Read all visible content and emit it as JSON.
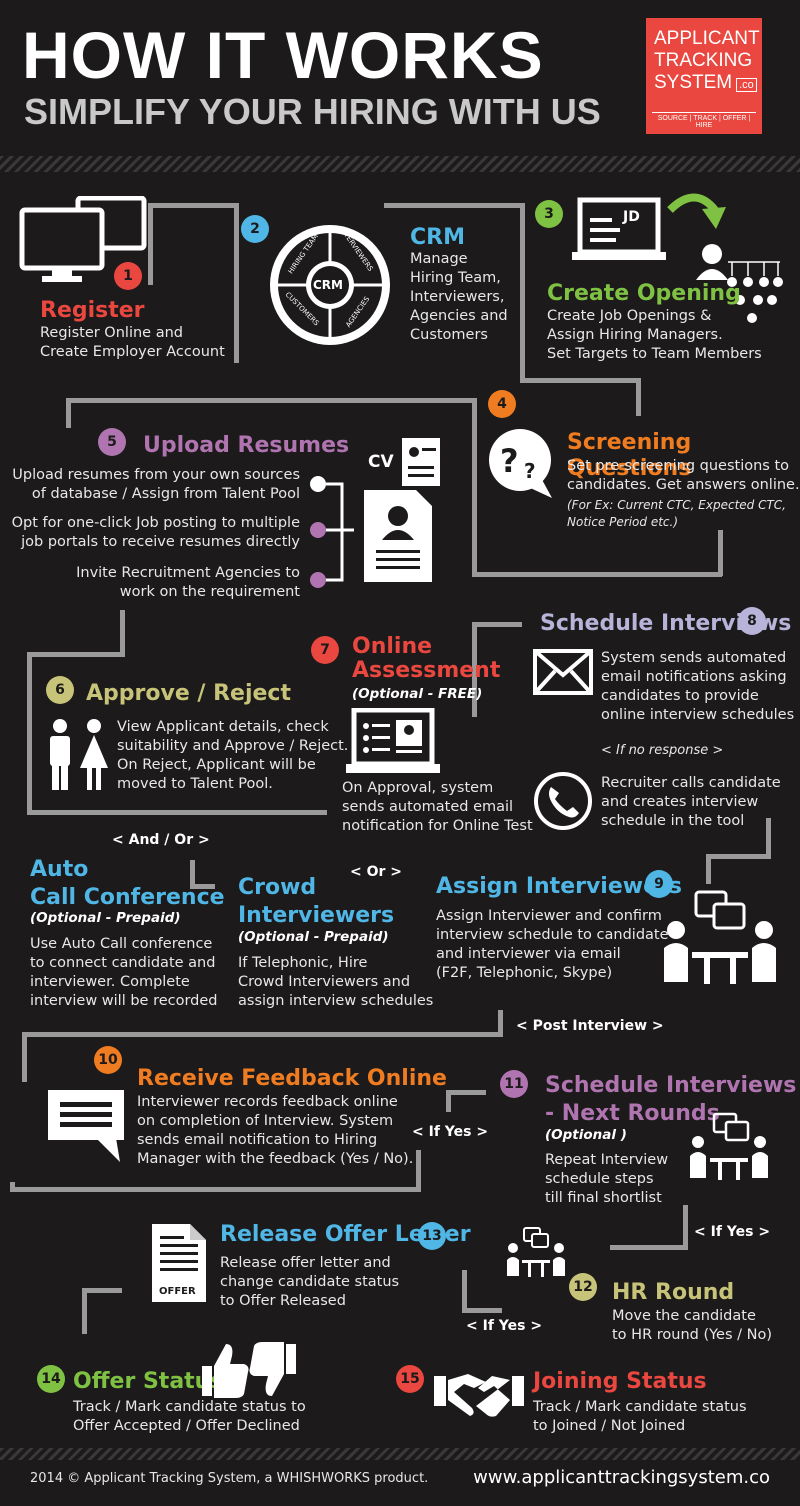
{
  "header": {
    "title": "HOW IT WORKS",
    "subtitle": "SIMPLIFY YOUR HIRING WITH US",
    "logo": {
      "line1": "APPLICANT",
      "line2": "TRACKING",
      "line3": "SYSTEM",
      "suffix": ".co",
      "tagline": "SOURCE | TRACK | OFFER | HIRE",
      "color": "#e9473f"
    }
  },
  "steps": {
    "s1": {
      "num": "1",
      "title": "Register",
      "text": [
        "Register Online and",
        "Create Employer Account"
      ]
    },
    "s2": {
      "num": "2",
      "title": "CRM",
      "text": [
        "Manage",
        "Hiring Team,",
        "Interviewers,",
        "Agencies and",
        "Customers"
      ],
      "wheel": {
        "center": "CRM",
        "q1": "HIRING TEAM",
        "q2": "INTERVIEWERS",
        "q3": "CUSTOMERS",
        "q4": "AGENCIES"
      }
    },
    "s3": {
      "num": "3",
      "title": "Create Opening",
      "icon_label": "JD",
      "text": [
        "Create Job Openings &",
        "Assign Hiring Managers.",
        "Set Targets to Team Members"
      ]
    },
    "s4": {
      "num": "4",
      "title": "Screening Questions",
      "text": [
        "Set pre-screening questions to",
        "candidates. Get answers online."
      ],
      "note": [
        "(For Ex: Current CTC, Expected CTC,",
        "Notice Period etc.)"
      ]
    },
    "s5": {
      "num": "5",
      "title": "Upload Resumes",
      "icon_label": "CV",
      "items": [
        [
          "Upload resumes from your own sources",
          "of database / Assign from Talent Pool"
        ],
        [
          "Opt for one-click Job posting to multiple",
          "job portals to receive resumes directly"
        ],
        [
          "Invite Recruitment Agencies to",
          "work on the requirement"
        ]
      ]
    },
    "s6": {
      "num": "6",
      "title": "Approve / Reject",
      "text": [
        "View Applicant details, check",
        "suitability and Approve / Reject.",
        "On Reject, Applicant will be",
        "moved to Talent Pool."
      ]
    },
    "s7": {
      "num": "7",
      "title": [
        "Online",
        "Assessment"
      ],
      "sub": "(Optional - FREE)",
      "text": [
        "On Approval, system",
        "sends automated email",
        "notification for Online Test"
      ]
    },
    "s8": {
      "num": "8",
      "title": "Schedule Interviews",
      "text": [
        "System sends automated",
        "email notifications asking",
        "candidates to provide",
        "online interview schedules"
      ],
      "branch": "< If no response >",
      "text2": [
        "Recruiter calls candidate",
        "and creates interview",
        "schedule in the tool"
      ]
    },
    "auto": {
      "title": [
        "Auto",
        "Call Conference"
      ],
      "sub": "(Optional - Prepaid)",
      "text": [
        "Use Auto Call conference",
        "to connect candidate and",
        "interviewer. Complete",
        "interview will be recorded"
      ]
    },
    "crowd": {
      "title": [
        "Crowd",
        "Interviewers"
      ],
      "sub": "(Optional - Prepaid)",
      "text": [
        "If Telephonic, Hire",
        "Crowd Interviewers and",
        "assign interview schedules"
      ]
    },
    "s9": {
      "num": "9",
      "title": "Assign Interviewers",
      "text": [
        "Assign Interviewer and confirm",
        "interview schedule to candidate",
        "and interviewer via email",
        "(F2F, Telephonic, Skype)"
      ]
    },
    "s10": {
      "num": "10",
      "title": "Receive Feedback Online",
      "text": [
        "Interviewer records feedback online",
        "on completion of Interview. System",
        "sends email notification to Hiring",
        "Manager with the feedback (Yes / No)."
      ]
    },
    "s11": {
      "num": "11",
      "title": [
        "Schedule Interviews",
        "- Next Rounds"
      ],
      "sub": "(Optional )",
      "text": [
        "Repeat Interview",
        "schedule steps",
        "till final shortlist"
      ]
    },
    "s12": {
      "num": "12",
      "title": "HR Round",
      "text": [
        "Move the candidate",
        "to HR round (Yes / No)"
      ]
    },
    "s13": {
      "num": "13",
      "title": "Release Offer Letter",
      "icon_label": "OFFER",
      "text": [
        "Release offer letter and",
        "change candidate status",
        "to Offer Released"
      ]
    },
    "s14": {
      "num": "14",
      "title": "Offer Status",
      "text": [
        "Track / Mark candidate status to",
        "Offer Accepted / Offer Declined"
      ]
    },
    "s15": {
      "num": "15",
      "title": "Joining Status",
      "text": [
        "Track / Mark candidate status",
        "to Joined / Not Joined"
      ]
    }
  },
  "connectors": {
    "and_or": "< And / Or >",
    "or": "< Or >",
    "post_interview": "< Post Interview >",
    "if_yes_1": "< If Yes >",
    "if_yes_2": "< If Yes >",
    "if_yes_3": "< If Yes >"
  },
  "footer": {
    "copyright": "2014 © Applicant Tracking System, a WHISHWORKS product.",
    "url": "www.applicanttrackingsystem.co"
  }
}
